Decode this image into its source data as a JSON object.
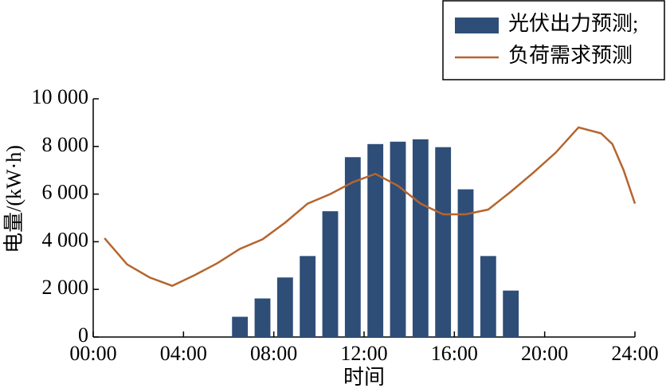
{
  "chart_data": {
    "type": "bar",
    "x_label": "时间",
    "y_label": "电量/(kW·h)",
    "xlim": [
      0,
      24
    ],
    "xticks": [
      {
        "value": 0,
        "label": "00:00"
      },
      {
        "value": 4,
        "label": "04:00"
      },
      {
        "value": 8,
        "label": "08:00"
      },
      {
        "value": 12,
        "label": "12:00"
      },
      {
        "value": 16,
        "label": "16:00"
      },
      {
        "value": 20,
        "label": "20:00"
      },
      {
        "value": 24,
        "label": "24:00"
      }
    ],
    "ylim": [
      0,
      10000
    ],
    "yticks": [
      0,
      {
        "value": 2000,
        "label": "2 000"
      },
      {
        "value": 4000,
        "label": "4 000"
      },
      {
        "value": 6000,
        "label": "6 000"
      },
      {
        "value": 8000,
        "label": "8 000"
      },
      {
        "value": 10000,
        "label": "10 000"
      }
    ],
    "grid": false,
    "legend": "top-right",
    "series": [
      {
        "name": "光伏出力预测;",
        "type": "bar",
        "color": "#2e4e78",
        "x": [
          6.5,
          7.5,
          8.5,
          9.5,
          10.5,
          11.5,
          12.5,
          13.5,
          14.5,
          15.5,
          16.5,
          17.5,
          18.5
        ],
        "values": [
          850,
          1620,
          2500,
          3400,
          5280,
          7550,
          8100,
          8200,
          8300,
          7970,
          6200,
          3400,
          1950
        ]
      },
      {
        "name": "负荷需求预测",
        "type": "line",
        "color": "#b5652f",
        "x": [
          0.5,
          1.5,
          2.5,
          3.5,
          4.5,
          5.5,
          6.5,
          7.5,
          8.5,
          9.5,
          10.5,
          11.5,
          12.5,
          13.5,
          14.5,
          15.5,
          16.5,
          17.5,
          18.5,
          19.5,
          20.5,
          21.5,
          22.5,
          23,
          23.5,
          24
        ],
        "values": [
          4150,
          3050,
          2500,
          2150,
          2600,
          3100,
          3700,
          4100,
          4800,
          5600,
          6000,
          6500,
          6850,
          6350,
          5600,
          5150,
          5150,
          5350,
          6100,
          6900,
          7750,
          8800,
          8550,
          8100,
          7000,
          5600
        ]
      }
    ]
  }
}
